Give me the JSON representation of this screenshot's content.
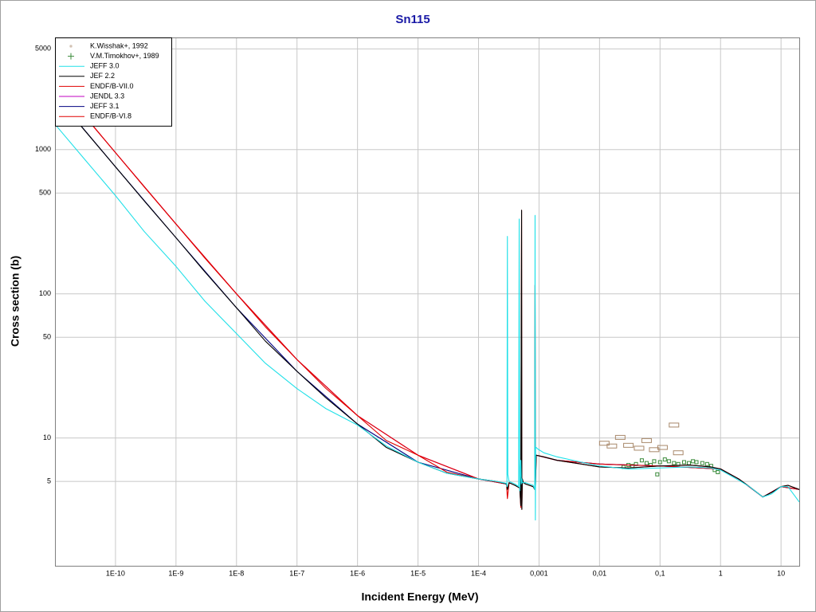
{
  "chart_data": {
    "type": "line",
    "title": "Sn115",
    "x_label": "Incident Energy (MeV)",
    "y_label": "Cross section (b)",
    "xscale": "log",
    "yscale": "log",
    "grid": true,
    "legend": "upper left",
    "xlim": [
      1e-11,
      20
    ],
    "ylim": [
      1.3,
      6000
    ],
    "xticks": [
      {
        "value": 1e-10,
        "label": "1E-10"
      },
      {
        "value": 1e-09,
        "label": "1E-9"
      },
      {
        "value": 1e-08,
        "label": "1E-8"
      },
      {
        "value": 1e-07,
        "label": "1E-7"
      },
      {
        "value": 1e-06,
        "label": "1E-6"
      },
      {
        "value": 1e-05,
        "label": "1E-5"
      },
      {
        "value": 0.0001,
        "label": "1E-4"
      },
      {
        "value": 0.001,
        "label": "0,001"
      },
      {
        "value": 0.01,
        "label": "0,01"
      },
      {
        "value": 0.1,
        "label": "0,1"
      },
      1,
      10
    ],
    "yticks": [
      5,
      10,
      50,
      100,
      500,
      1000,
      5000
    ],
    "series": [
      {
        "name": "K.Wisshak+, 1992",
        "color": "#a8886a",
        "marker": "box",
        "x": [
          0.012,
          0.016,
          0.022,
          0.03,
          0.045,
          0.06,
          0.08,
          0.11,
          0.17,
          0.2
        ],
        "values": [
          9.2,
          8.8,
          10.1,
          8.9,
          8.5,
          9.6,
          8.3,
          8.6,
          12.3,
          7.9
        ]
      },
      {
        "name": "V.M.Timokhov+, 1989",
        "color": "#3a8a3a",
        "marker": "square",
        "x": [
          0.025,
          0.03,
          0.035,
          0.04,
          0.05,
          0.06,
          0.07,
          0.08,
          0.09,
          0.1,
          0.12,
          0.14,
          0.17,
          0.2,
          0.25,
          0.3,
          0.35,
          0.4,
          0.5,
          0.6,
          0.7,
          0.8,
          0.9
        ],
        "values": [
          6.3,
          6.5,
          6.4,
          6.6,
          7.0,
          6.7,
          6.5,
          6.9,
          5.6,
          6.8,
          7.1,
          6.9,
          6.7,
          6.6,
          6.8,
          6.7,
          6.9,
          6.8,
          6.7,
          6.6,
          6.4,
          6.0,
          5.8
        ]
      },
      {
        "name": "JEFF 3.0",
        "color": "#20e0e8",
        "z": 6,
        "x": [
          1e-11,
          3e-11,
          1e-10,
          3e-10,
          1e-09,
          3e-09,
          1e-08,
          3e-08,
          1e-07,
          3e-07,
          1e-06,
          3e-06,
          1e-05,
          3e-05,
          0.0001,
          0.0002,
          0.00029,
          0.000295,
          0.0003,
          0.000305,
          0.00032,
          0.0004,
          0.00046,
          0.00047,
          0.00048,
          0.0005,
          0.00051,
          0.00052,
          0.00053,
          0.0006,
          0.0008,
          0.00085,
          0.00086,
          0.00087,
          0.00088,
          0.0009,
          0.00095,
          0.0012,
          0.002,
          0.005,
          0.01,
          0.03,
          0.1,
          0.3,
          0.7,
          1,
          2,
          3,
          5,
          7,
          10,
          13,
          20
        ],
        "values": [
          1500,
          870,
          480,
          270,
          155,
          89,
          53,
          33,
          22,
          16,
          12.3,
          8.8,
          6.8,
          5.7,
          5.2,
          5.0,
          4.85,
          4.6,
          250,
          5.6,
          5.0,
          4.8,
          4.6,
          330,
          4.3,
          7.0,
          4.8,
          5.2,
          4.9,
          4.9,
          4.7,
          4.4,
          350,
          2.7,
          8.5,
          8.6,
          8.4,
          7.9,
          7.4,
          6.8,
          6.4,
          6.1,
          6.2,
          6.3,
          6.2,
          6.0,
          5.1,
          4.6,
          3.9,
          4.1,
          4.6,
          4.6,
          3.6
        ]
      },
      {
        "name": "JEF 2.2",
        "color": "#000000",
        "z": 5,
        "x": [
          1e-11,
          3e-11,
          1e-10,
          3e-10,
          1e-09,
          3e-09,
          1e-08,
          3e-08,
          1e-07,
          3e-07,
          1e-06,
          3e-06,
          1e-05,
          3e-05,
          0.0001,
          0.0002,
          0.00029,
          0.0003,
          0.00032,
          0.0004,
          0.00048,
          0.0005,
          0.000515,
          0.00052,
          0.00053,
          0.00055,
          0.0006,
          0.0008,
          0.00085,
          0.00086,
          0.00087,
          0.0009,
          0.0012,
          0.002,
          0.005,
          0.01,
          0.03,
          0.1,
          0.3,
          0.7,
          1,
          2,
          3,
          5,
          7,
          10,
          13,
          20
        ],
        "values": [
          2400,
          1380,
          760,
          440,
          245,
          142,
          80,
          47,
          29,
          19,
          12.5,
          8.6,
          6.8,
          5.7,
          5.2,
          5.0,
          4.8,
          4.4,
          4.9,
          4.7,
          4.5,
          3.4,
          380,
          3.2,
          5.2,
          4.9,
          4.8,
          4.6,
          4.4,
          115,
          4.4,
          7.6,
          7.4,
          7.0,
          6.6,
          6.3,
          6.2,
          6.4,
          6.5,
          6.3,
          6.1,
          5.2,
          4.6,
          3.9,
          4.2,
          4.6,
          4.7,
          4.4
        ]
      },
      {
        "name": "ENDF/B-VII.0",
        "color": "#e00000",
        "z": 4,
        "x": [
          1e-11,
          3e-11,
          1e-10,
          3e-10,
          1e-09,
          3e-09,
          1e-08,
          3e-08,
          1e-07,
          3e-07,
          1e-06,
          3e-06,
          1e-05,
          3e-05,
          0.0001,
          0.0002,
          0.00029,
          0.0003,
          0.00032,
          0.0004,
          0.00048,
          0.0005,
          0.000515,
          0.00052,
          0.00053,
          0.00055,
          0.0006,
          0.0008,
          0.00085,
          0.00086,
          0.00087,
          0.0009,
          0.0012,
          0.002,
          0.005,
          0.01,
          0.03,
          0.1,
          0.3,
          0.7,
          1,
          2,
          3,
          5,
          7,
          10,
          13,
          20
        ],
        "values": [
          3000,
          1740,
          953,
          550,
          305,
          177,
          100,
          59,
          35,
          22.1,
          14.3,
          9.6,
          7.6,
          5.8,
          5.2,
          5.0,
          4.8,
          3.8,
          4.9,
          4.7,
          4.5,
          3.3,
          380,
          3.2,
          5.2,
          4.9,
          4.8,
          4.6,
          4.4,
          115,
          4.4,
          7.6,
          7.4,
          7.0,
          6.6,
          6.3,
          6.2,
          6.4,
          6.5,
          6.3,
          6.1,
          5.2,
          4.6,
          3.9,
          4.2,
          4.6,
          4.7,
          4.4
        ]
      },
      {
        "name": "JENDL 3.3",
        "color": "#c000c0",
        "z": 1,
        "x": [
          1e-11,
          1e-10,
          1e-09,
          1e-08,
          1e-07,
          1e-06,
          1e-05,
          0.0001,
          0.00029,
          0.0006,
          0.0009,
          0.002,
          0.01,
          0.1,
          1,
          2,
          5,
          10,
          20
        ],
        "values": [
          3000,
          953,
          305,
          100,
          35,
          14.3,
          7.6,
          5.2,
          4.8,
          null,
          7.6,
          7.0,
          6.6,
          6.4,
          6.1,
          5.2,
          3.9,
          4.6,
          4.4
        ]
      },
      {
        "name": "JEFF 3.1",
        "color": "#000080",
        "z": 2,
        "x": [
          1e-11,
          1e-10,
          1e-09,
          1e-08,
          1e-07,
          1e-06,
          1e-05,
          0.0001,
          0.00029,
          0.0006,
          0.0009,
          0.002,
          0.01,
          0.1,
          1,
          2,
          5,
          10,
          20
        ],
        "values": [
          2400,
          760,
          245,
          80,
          29,
          12.5,
          6.8,
          5.2,
          4.8,
          null,
          7.6,
          7.0,
          6.6,
          6.4,
          6.1,
          5.2,
          3.9,
          4.6,
          4.4
        ]
      },
      {
        "name": "ENDF/B-VI.8",
        "color": "#e00000",
        "z": 3,
        "x": [
          1e-11,
          1e-10,
          1e-09,
          1e-08,
          1e-07,
          1e-06,
          1e-05,
          0.0001,
          0.00029,
          0.0006,
          0.0009,
          0.002,
          0.01,
          0.1,
          1,
          2,
          5,
          10,
          20
        ],
        "values": [
          3000,
          953,
          305,
          100,
          35,
          14.3,
          7.6,
          5.2,
          4.8,
          null,
          7.6,
          7.0,
          6.6,
          6.4,
          6.1,
          5.2,
          3.9,
          4.6,
          4.4
        ]
      }
    ]
  }
}
